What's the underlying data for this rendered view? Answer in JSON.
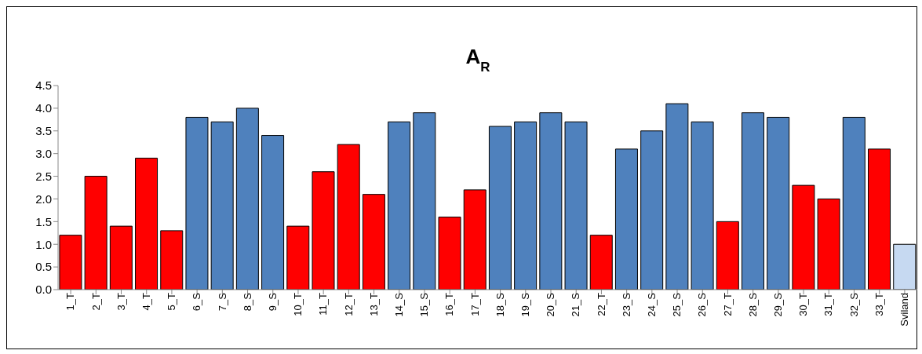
{
  "chart_data": {
    "type": "bar",
    "title": "A$_{R}$",
    "categories": [
      "1_T",
      "2_T",
      "3_T",
      "4_T",
      "5_T",
      "6_S",
      "7_S",
      "8_S",
      "9_S",
      "10_T",
      "11_T",
      "12_T",
      "13_T",
      "14_S",
      "15_S",
      "16_T",
      "17_T",
      "18_S",
      "19_S",
      "20_S",
      "21_S",
      "22_T",
      "23_S",
      "24_S",
      "25_S",
      "26_S",
      "27_T",
      "28_S",
      "29_S",
      "30_T",
      "31_T",
      "32_S",
      "33_T",
      "Sviland"
    ],
    "values": [
      1.2,
      2.5,
      1.4,
      2.9,
      1.3,
      3.8,
      3.7,
      4.0,
      3.4,
      1.4,
      2.6,
      3.2,
      2.1,
      3.7,
      3.9,
      1.6,
      2.2,
      3.6,
      3.7,
      3.9,
      3.7,
      1.2,
      3.1,
      3.5,
      4.1,
      3.7,
      1.5,
      3.9,
      3.8,
      2.3,
      2.0,
      3.8,
      3.1,
      1.0
    ],
    "colors": [
      "#ff0000",
      "#ff0000",
      "#ff0000",
      "#ff0000",
      "#ff0000",
      "#4f81bd",
      "#4f81bd",
      "#4f81bd",
      "#4f81bd",
      "#ff0000",
      "#ff0000",
      "#ff0000",
      "#ff0000",
      "#4f81bd",
      "#4f81bd",
      "#ff0000",
      "#ff0000",
      "#4f81bd",
      "#4f81bd",
      "#4f81bd",
      "#4f81bd",
      "#ff0000",
      "#4f81bd",
      "#4f81bd",
      "#4f81bd",
      "#4f81bd",
      "#ff0000",
      "#4f81bd",
      "#4f81bd",
      "#ff0000",
      "#ff0000",
      "#4f81bd",
      "#ff0000",
      "#c6d9f1"
    ],
    "ylim": [
      0,
      4.5
    ],
    "yticks": [
      {
        "value": 0,
        "label": "0.0"
      },
      {
        "value": 0.5,
        "label": "0.5"
      },
      {
        "value": 1,
        "label": "1.0"
      },
      {
        "value": 1.5,
        "label": "1.5"
      },
      {
        "value": 2,
        "label": "2.0"
      },
      {
        "value": 2.5,
        "label": "2.5"
      },
      {
        "value": 3,
        "label": "3.0"
      },
      {
        "value": 3.5,
        "label": "3.5"
      },
      {
        "value": 4,
        "label": "4.0"
      },
      {
        "value": 4.5,
        "label": "4.5"
      }
    ],
    "grid": false,
    "legend": false
  }
}
